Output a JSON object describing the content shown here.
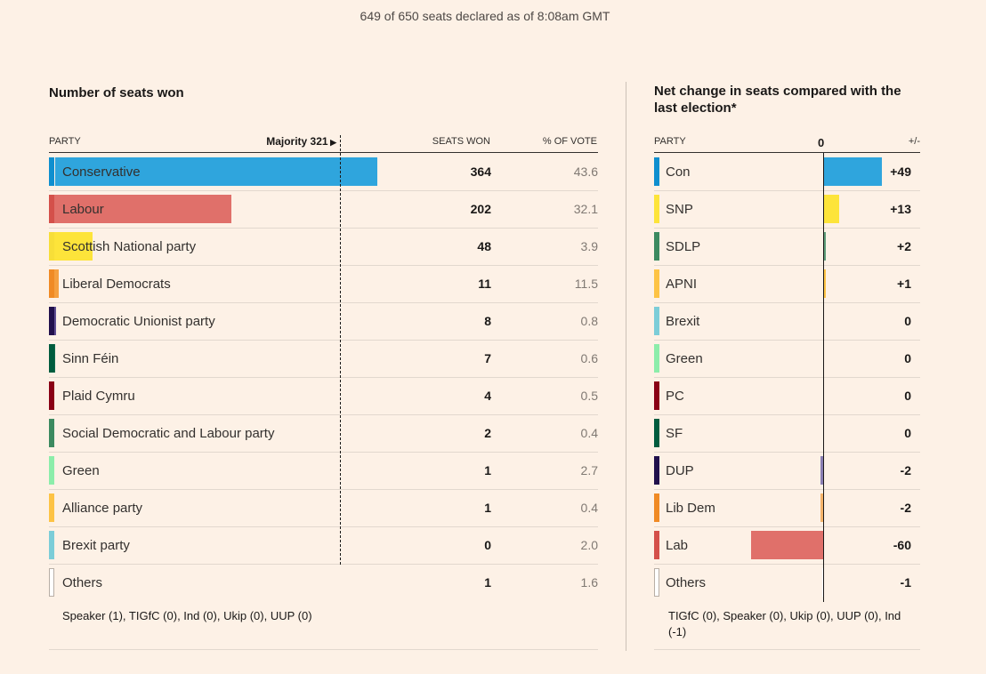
{
  "subtitle": "649 of 650 seats declared as of 8:08am GMT",
  "left": {
    "title": "Number of seats won",
    "col_party": "PARTY",
    "majority_label": "Majority 321",
    "col_seats": "SEATS WON",
    "col_vote": "% OF VOTE",
    "note": "Speaker (1), TIGfC (0), Ind (0), Ukip (0), UUP (0)"
  },
  "right": {
    "title_line1": "Net change in seats compared with the",
    "title_line2": "last election*",
    "col_party": "PARTY",
    "zero_label": "0",
    "col_change": "+/-",
    "note_line1": "TIGfC (0), Speaker (0), Ukip (0), UUP (0), Ind",
    "note_line2": "(-1)"
  },
  "chart_data": [
    {
      "type": "bar",
      "title": "Number of seats won",
      "xlabel": "SEATS WON",
      "majority": 321,
      "max_seats_scale": 364,
      "categories": [
        "Conservative",
        "Labour",
        "Scottish National party",
        "Liberal Democrats",
        "Democratic Unionist party",
        "Sinn Féin",
        "Plaid Cymru",
        "Social Democratic and Labour party",
        "Green",
        "Alliance party",
        "Brexit party",
        "Others"
      ],
      "values": [
        364,
        202,
        48,
        11,
        8,
        7,
        4,
        2,
        1,
        1,
        0,
        1
      ],
      "vote_share": [
        "43.6",
        "32.1",
        "3.9",
        "11.5",
        "0.8",
        "0.6",
        "0.5",
        "0.4",
        "2.7",
        "0.4",
        "2.0",
        "1.6"
      ],
      "colors": [
        "#2fa5dd",
        "#e0706a",
        "#fde43a",
        "#f5a040",
        "#5f4e91",
        "#106a4c",
        "#a6192e",
        "#5c9c78",
        "#8cedaa",
        "#fdc345",
        "#7ccdd8",
        "#ffffff"
      ],
      "swatch_colors": [
        "#0f8fcf",
        "#d4504a",
        "#f7de38",
        "#f08a24",
        "#21104c",
        "#005c3e",
        "#8a0015",
        "#3c8a60",
        "#8cedaa",
        "#fdc345",
        "#7ccdd8",
        "#ffffff"
      ]
    },
    {
      "type": "bar",
      "title": "Net change in seats compared with the last election*",
      "xlabel": "+/-",
      "categories": [
        "Con",
        "SNP",
        "SDLP",
        "APNI",
        "Brexit",
        "Green",
        "PC",
        "SF",
        "DUP",
        "Lib Dem",
        "Lab",
        "Others"
      ],
      "values": [
        49,
        13,
        2,
        1,
        0,
        0,
        0,
        0,
        -2,
        -2,
        -60,
        -1
      ],
      "labels": [
        "+49",
        "+13",
        "+2",
        "+1",
        "0",
        "0",
        "0",
        "0",
        "-2",
        "-2",
        "-60",
        "-1"
      ],
      "xlim": [
        -63,
        82
      ],
      "colors": [
        "#2fa5dd",
        "#fde43a",
        "#5c9c78",
        "#fdc345",
        "#7ccdd8",
        "#8cedaa",
        "#a6192e",
        "#106a4c",
        "#8a7fb3",
        "#f5b46a",
        "#e0706a",
        "#ffffff"
      ],
      "swatch_colors": [
        "#0f8fcf",
        "#fde43a",
        "#3c8a60",
        "#fdc345",
        "#7ccdd8",
        "#8cedaa",
        "#8a0015",
        "#005c3e",
        "#21104c",
        "#f08a24",
        "#d4504a",
        "#ffffff"
      ]
    }
  ]
}
